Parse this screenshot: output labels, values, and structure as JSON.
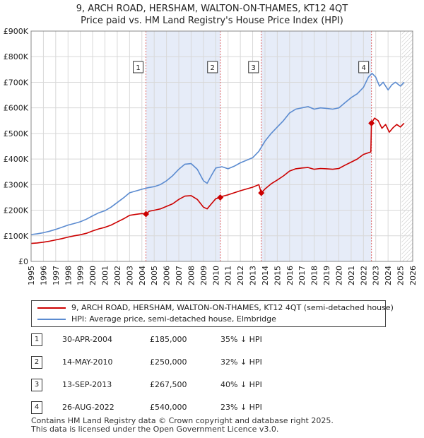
{
  "title_line1": "9, ARCH ROAD, HERSHAM, WALTON-ON-THAMES, KT12 4QT",
  "title_line2": "Price paid vs. HM Land Registry's House Price Index (HPI)",
  "colors": {
    "price_line": "#cc0000",
    "hpi_line": "#5b8bd0",
    "shade": "#e6ecf8",
    "grid": "#d8d8d8",
    "marker_line": "#e06666"
  },
  "chart_data": {
    "type": "line",
    "title": "9, ARCH ROAD, HERSHAM, WALTON-ON-THAMES, KT12 4QT — Price paid vs. HM Land Registry's House Price Index (HPI)",
    "xlabel": "",
    "ylabel": "",
    "xlim": [
      1995,
      2026
    ],
    "ylim": [
      0,
      900000
    ],
    "y_ticks": [
      {
        "value": 0,
        "label": "£0"
      },
      {
        "value": 100000,
        "label": "£100K"
      },
      {
        "value": 200000,
        "label": "£200K"
      },
      {
        "value": 300000,
        "label": "£300K"
      },
      {
        "value": 400000,
        "label": "£400K"
      },
      {
        "value": 500000,
        "label": "£500K"
      },
      {
        "value": 600000,
        "label": "£600K"
      },
      {
        "value": 700000,
        "label": "£700K"
      },
      {
        "value": 800000,
        "label": "£800K"
      },
      {
        "value": 900000,
        "label": "£900K"
      }
    ],
    "x_ticks": [
      1995,
      1996,
      1997,
      1998,
      1999,
      2000,
      2001,
      2002,
      2003,
      2004,
      2005,
      2006,
      2007,
      2008,
      2009,
      2010,
      2011,
      2012,
      2013,
      2014,
      2015,
      2016,
      2017,
      2018,
      2019,
      2020,
      2021,
      2022,
      2023,
      2024,
      2025,
      2026
    ],
    "grid": true,
    "shaded_ranges": [
      [
        2004.33,
        2010.37
      ],
      [
        2013.7,
        2022.65
      ]
    ],
    "hatched_after": 2025.1,
    "series": [
      {
        "name": "HPI: Average price, semi-detached house, Elmbridge",
        "x": [
          1995.0,
          1995.5,
          1996.0,
          1996.5,
          1997.0,
          1997.5,
          1998.0,
          1998.5,
          1999.0,
          1999.5,
          2000.0,
          2000.5,
          2001.0,
          2001.5,
          2002.0,
          2002.5,
          2003.0,
          2003.5,
          2004.0,
          2004.5,
          2005.0,
          2005.5,
          2006.0,
          2006.5,
          2007.0,
          2007.5,
          2008.0,
          2008.5,
          2009.0,
          2009.3,
          2009.7,
          2010.0,
          2010.5,
          2011.0,
          2011.5,
          2012.0,
          2012.5,
          2013.0,
          2013.5,
          2014.0,
          2014.5,
          2015.0,
          2015.5,
          2016.0,
          2016.5,
          2017.0,
          2017.5,
          2018.0,
          2018.5,
          2019.0,
          2019.5,
          2020.0,
          2020.5,
          2021.0,
          2021.5,
          2022.0,
          2022.4,
          2022.7,
          2023.0,
          2023.3,
          2023.6,
          2024.0,
          2024.3,
          2024.6,
          2025.0,
          2025.3
        ],
        "values": [
          105000,
          108000,
          112000,
          118000,
          125000,
          133000,
          142000,
          148000,
          155000,
          165000,
          178000,
          190000,
          198000,
          212000,
          230000,
          248000,
          268000,
          275000,
          282000,
          288000,
          292000,
          300000,
          315000,
          335000,
          360000,
          380000,
          382000,
          360000,
          315000,
          305000,
          340000,
          365000,
          370000,
          362000,
          372000,
          385000,
          395000,
          405000,
          430000,
          470000,
          500000,
          525000,
          550000,
          580000,
          595000,
          600000,
          605000,
          595000,
          600000,
          598000,
          595000,
          600000,
          620000,
          640000,
          655000,
          680000,
          720000,
          735000,
          720000,
          685000,
          700000,
          670000,
          690000,
          700000,
          685000,
          700000
        ]
      },
      {
        "name": "9, ARCH ROAD, HERSHAM, WALTON-ON-THAMES, KT12 4QT (semi-detached house)",
        "x": [
          1995.0,
          1995.5,
          1996.0,
          1996.5,
          1997.0,
          1997.5,
          1998.0,
          1998.5,
          1999.0,
          1999.5,
          2000.0,
          2000.5,
          2001.0,
          2001.5,
          2002.0,
          2002.5,
          2003.0,
          2003.5,
          2004.0,
          2004.33,
          2004.6,
          2005.0,
          2005.5,
          2006.0,
          2006.5,
          2007.0,
          2007.5,
          2008.0,
          2008.5,
          2009.0,
          2009.3,
          2009.7,
          2010.0,
          2010.37,
          2010.6,
          2011.0,
          2011.5,
          2012.0,
          2012.5,
          2013.0,
          2013.5,
          2013.7,
          2014.0,
          2014.5,
          2015.0,
          2015.5,
          2016.0,
          2016.5,
          2017.0,
          2017.5,
          2018.0,
          2018.5,
          2019.0,
          2019.5,
          2020.0,
          2020.5,
          2021.0,
          2021.5,
          2022.0,
          2022.6,
          2022.65,
          2022.9,
          2023.2,
          2023.5,
          2023.8,
          2024.1,
          2024.4,
          2024.7,
          2025.0,
          2025.3
        ],
        "values": [
          70000,
          72000,
          75000,
          79000,
          84000,
          89000,
          95000,
          100000,
          104000,
          110000,
          119000,
          127000,
          133000,
          142000,
          154000,
          166000,
          180000,
          184000,
          187000,
          185000,
          196000,
          200000,
          205000,
          215000,
          225000,
          242000,
          255000,
          257000,
          242000,
          212000,
          205000,
          228000,
          245000,
          250000,
          255000,
          260000,
          268000,
          276000,
          283000,
          290000,
          300000,
          267500,
          283000,
          303000,
          318000,
          334000,
          353000,
          362000,
          365000,
          367000,
          360000,
          363000,
          362000,
          360000,
          363000,
          376000,
          388000,
          400000,
          418000,
          428000,
          540000,
          560000,
          550000,
          520000,
          535000,
          505000,
          522000,
          535000,
          525000,
          540000
        ]
      }
    ],
    "sales": [
      {
        "num": "1",
        "date": "30-APR-2004",
        "price": "£185,000",
        "hpi": "35% ↓ HPI",
        "x": 2004.33,
        "value": 185000
      },
      {
        "num": "2",
        "date": "14-MAY-2010",
        "price": "£250,000",
        "hpi": "32% ↓ HPI",
        "x": 2010.37,
        "value": 250000
      },
      {
        "num": "3",
        "date": "13-SEP-2013",
        "price": "£267,500",
        "hpi": "40% ↓ HPI",
        "x": 2013.7,
        "value": 267500
      },
      {
        "num": "4",
        "date": "26-AUG-2022",
        "price": "£540,000",
        "hpi": "23% ↓ HPI",
        "x": 2022.65,
        "value": 540000
      }
    ]
  },
  "legend": {
    "price_label": "9, ARCH ROAD, HERSHAM, WALTON-ON-THAMES, KT12 4QT (semi-detached house)",
    "hpi_label": "HPI: Average price, semi-detached house, Elmbridge"
  },
  "footer": {
    "line1": "Contains HM Land Registry data © Crown copyright and database right 2025.",
    "line2": "This data is licensed under the Open Government Licence v3.0."
  }
}
